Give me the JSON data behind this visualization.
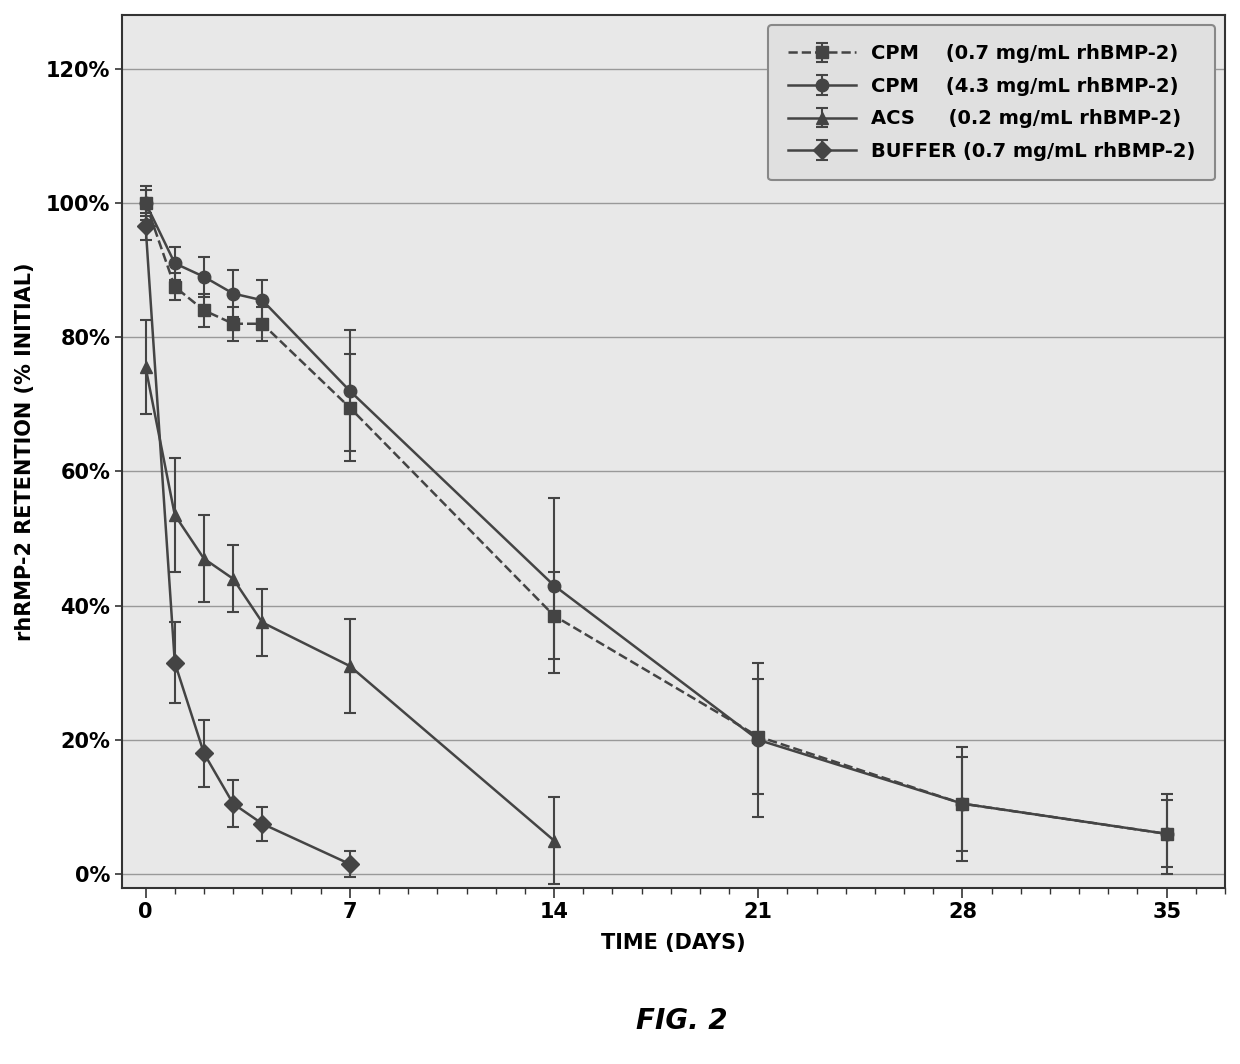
{
  "title": "FIG. 2",
  "xlabel": "TIME (DAYS)",
  "ylabel": "rhRMP-2 RETENTION (% INITIAL)",
  "xlim": [
    -0.8,
    37
  ],
  "ylim": [
    -0.02,
    1.28
  ],
  "yticks": [
    0.0,
    0.2,
    0.4,
    0.6,
    0.8,
    1.0,
    1.2
  ],
  "ytick_labels": [
    "0%",
    "20%",
    "40%",
    "60%",
    "80%",
    "100%",
    "120%"
  ],
  "xticks": [
    0,
    7,
    14,
    21,
    28,
    35
  ],
  "series": [
    {
      "label": "CPM    (0.7 mg/mL rhBMP-2)",
      "x": [
        0,
        1,
        2,
        3,
        4,
        7,
        14,
        21,
        28,
        35
      ],
      "y": [
        1.0,
        0.875,
        0.84,
        0.82,
        0.82,
        0.695,
        0.385,
        0.205,
        0.105,
        0.06
      ],
      "yerr": [
        0.025,
        0.02,
        0.025,
        0.025,
        0.025,
        0.08,
        0.065,
        0.085,
        0.085,
        0.06
      ],
      "marker": "s",
      "linestyle": "--",
      "color": "#444444",
      "markersize": 9
    },
    {
      "label": "CPM    (4.3 mg/mL rhBMP-2)",
      "x": [
        0,
        1,
        2,
        3,
        4,
        7,
        14,
        21,
        28,
        35
      ],
      "y": [
        1.0,
        0.91,
        0.89,
        0.865,
        0.855,
        0.72,
        0.43,
        0.2,
        0.105,
        0.06
      ],
      "yerr": [
        0.02,
        0.025,
        0.03,
        0.035,
        0.03,
        0.09,
        0.13,
        0.115,
        0.07,
        0.05
      ],
      "marker": "o",
      "linestyle": "-",
      "color": "#444444",
      "markersize": 9
    },
    {
      "label": "ACS     (0.2 mg/mL rhBMP-2)",
      "x": [
        0,
        1,
        2,
        3,
        4,
        7,
        14
      ],
      "y": [
        0.755,
        0.535,
        0.47,
        0.44,
        0.375,
        0.31,
        0.05
      ],
      "yerr": [
        0.07,
        0.085,
        0.065,
        0.05,
        0.05,
        0.07,
        0.065
      ],
      "marker": "^",
      "linestyle": "-",
      "color": "#444444",
      "markersize": 9
    },
    {
      "label": "BUFFER (0.7 mg/mL rhBMP-2)",
      "x": [
        0,
        1,
        2,
        3,
        4,
        7
      ],
      "y": [
        0.965,
        0.315,
        0.18,
        0.105,
        0.075,
        0.015
      ],
      "yerr": [
        0.02,
        0.06,
        0.05,
        0.035,
        0.025,
        0.02
      ],
      "marker": "D",
      "linestyle": "-",
      "color": "#444444",
      "markersize": 9
    }
  ],
  "background_color": "#ffffff",
  "plot_bg_color": "#e8e8e8",
  "grid_color": "#999999",
  "legend_fontsize": 14,
  "axis_label_fontsize": 15,
  "tick_fontsize": 15,
  "title_fontsize": 20
}
